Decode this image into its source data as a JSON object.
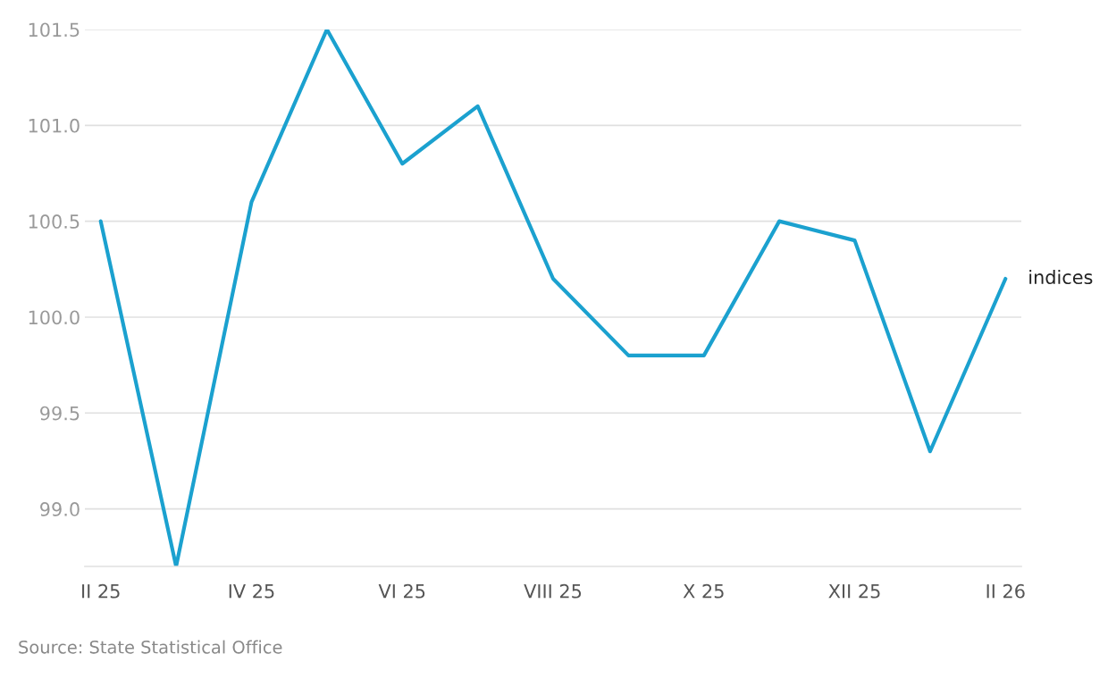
{
  "chart_data": {
    "type": "line",
    "categories": [
      "II 25",
      null,
      "IV 25",
      null,
      "VI 25",
      null,
      "VIII 25",
      null,
      "X 25",
      null,
      "XII 25",
      null,
      "II 26"
    ],
    "series": [
      {
        "name": "indices",
        "color": "#1ba1cf",
        "values": [
          100.5,
          98.7,
          100.6,
          101.5,
          100.8,
          101.1,
          100.2,
          99.8,
          99.8,
          100.5,
          100.4,
          99.3,
          100.2
        ]
      }
    ],
    "ylim": [
      98.7,
      101.5
    ],
    "yticks": [
      {
        "value": 99.0,
        "label": "99.0"
      },
      {
        "value": 99.5,
        "label": "99.5"
      },
      {
        "value": 100.0,
        "label": "100.0"
      },
      {
        "value": 100.5,
        "label": "100.5"
      },
      {
        "value": 101.0,
        "label": "101.0"
      },
      {
        "value": 101.5,
        "label": "101.5"
      }
    ],
    "grid": "y",
    "annotations": [
      "Source: State Statistical Office"
    ]
  }
}
